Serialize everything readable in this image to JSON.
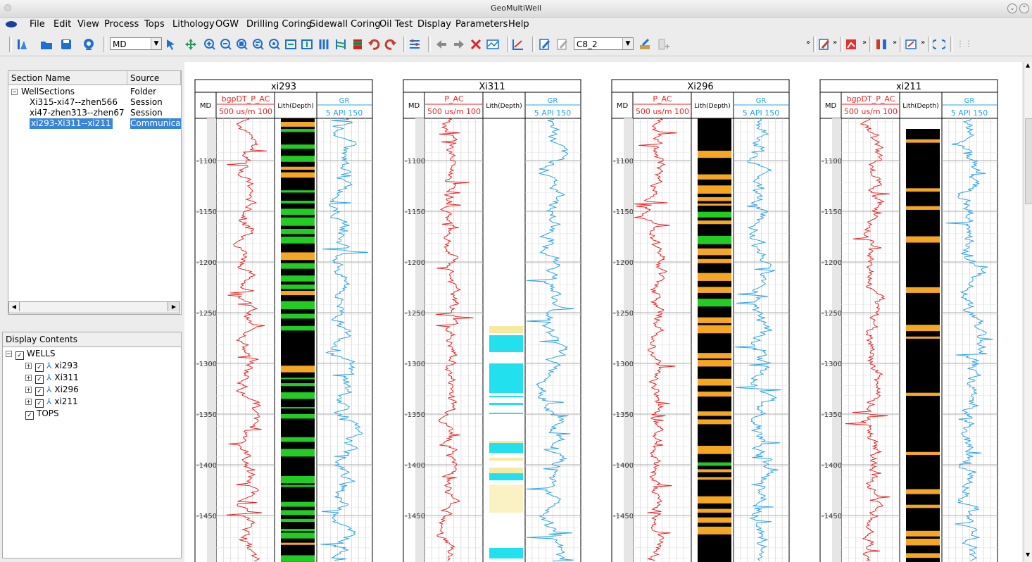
{
  "window": {
    "title": "GeoMultiWell"
  },
  "menu": [
    "File",
    "Edit",
    "View",
    "Process",
    "Tops",
    "Lithology",
    "OGW",
    "Drilling Coring",
    "Sidewall Coring",
    "Oil Test",
    "Display",
    "Parameters",
    "Help"
  ],
  "toolbar": {
    "depth_mode": "MD",
    "horizon": "C8_2"
  },
  "section_tree": {
    "headers": {
      "name": "Section Name",
      "source": "Source"
    },
    "rows": [
      {
        "name": "WellSections",
        "source": "Folder"
      },
      {
        "name": "Xi315-xi47--zhen566",
        "source": "Session"
      },
      {
        "name": "xi47-zhen313--zhen67",
        "source": "Session"
      },
      {
        "name": "xi293-Xi311--xi211",
        "source": "Communicat"
      }
    ]
  },
  "display_contents": {
    "header": "Display Contents",
    "root": "WELLS",
    "wells": [
      "xi293",
      "Xi311",
      "Xi296",
      "xi211"
    ],
    "tops": "TOPS"
  },
  "track_labels": {
    "md": "MD",
    "lith": "Lith(Depth)",
    "gr": "GR",
    "gr_scale": "5 API 150",
    "ac_scale": "500 us/m 100"
  },
  "wells": [
    {
      "name": "xi293",
      "ac_curve": "bgpDT_P_AC"
    },
    {
      "name": "Xi311",
      "ac_curve": "P_AC"
    },
    {
      "name": "Xi296",
      "ac_curve": "P_AC"
    },
    {
      "name": "xi211",
      "ac_curve": "bgpDT_P_AC"
    }
  ],
  "depth_ticks": [
    "1100",
    "1150",
    "1200",
    "1250",
    "1300",
    "1350",
    "1400",
    "1450"
  ],
  "colors": {
    "ac": "#ee2222",
    "gr": "#2aa3e8",
    "sand_orange": "#f5a623",
    "green": "#22cc22",
    "cyan": "#22e0ee",
    "selection": "#3a86d6"
  }
}
